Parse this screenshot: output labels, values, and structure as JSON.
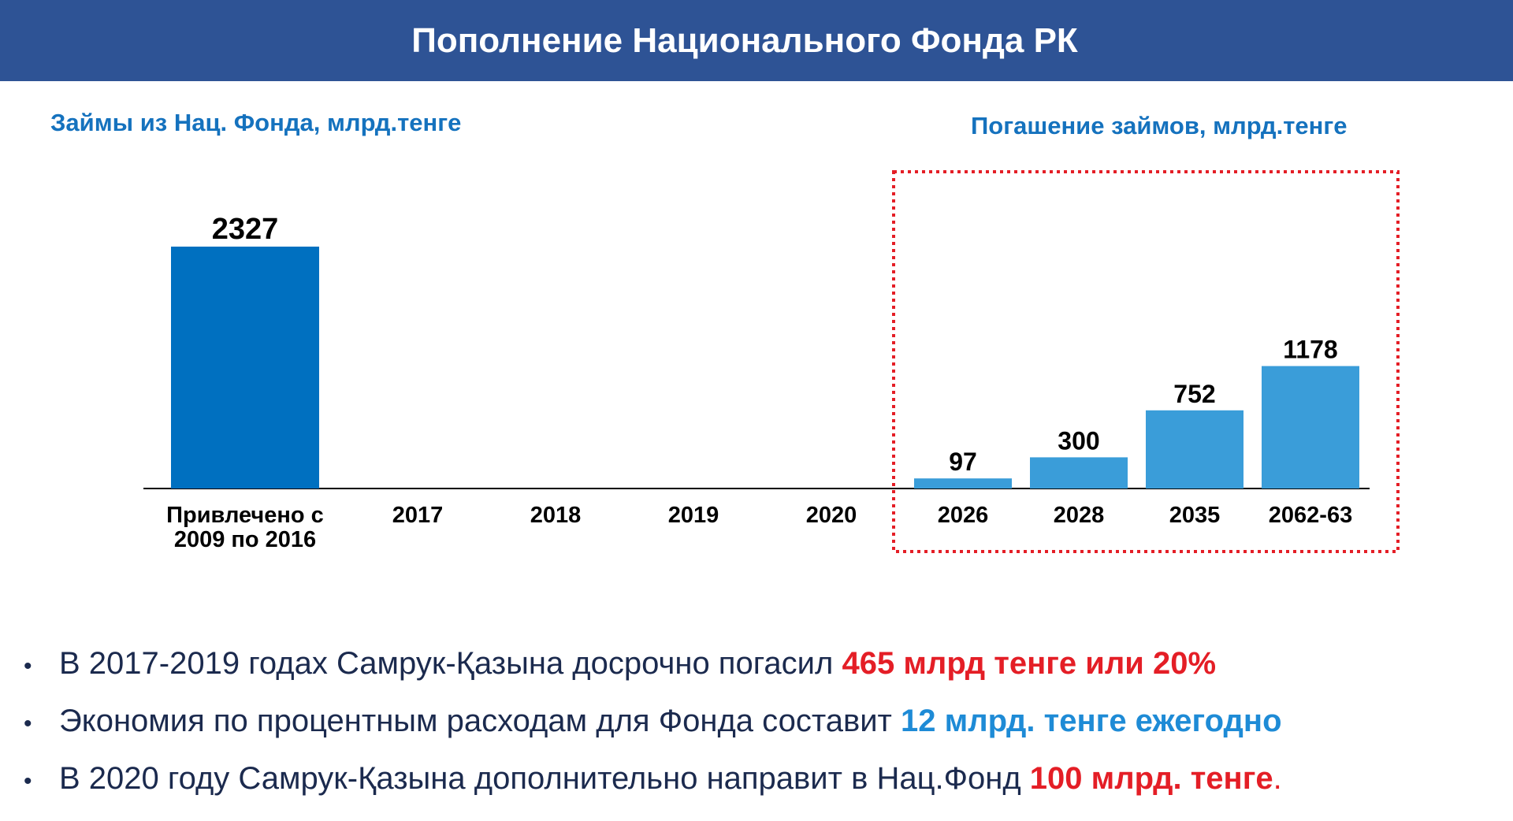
{
  "header": {
    "title": "Пополнение Национального Фонда РК"
  },
  "subtitles": {
    "left": "Займы из Нац. Фонда, млрд.тенге",
    "right": "Погашение займов, млрд.тенге"
  },
  "colors": {
    "header_bg": "#2E5395",
    "subtitle": "#1572BE",
    "bar_borrowed": "#0070C0",
    "bar_repayment": "#3A9DD9",
    "highlight_box": "#E41E26",
    "text_red": "#E41E26",
    "text_blue": "#1E8BD6"
  },
  "chart_data": {
    "type": "bar",
    "categories": [
      "Привлечено с 2009 по 2016",
      "2017",
      "2018",
      "2019",
      "2020",
      "2026",
      "2028",
      "2035",
      "2062-63"
    ],
    "category_lines": [
      [
        "Привлечено с",
        "2009 по 2016"
      ],
      [
        "2017"
      ],
      [
        "2018"
      ],
      [
        "2019"
      ],
      [
        "2020"
      ],
      [
        "2026"
      ],
      [
        "2028"
      ],
      [
        "2035"
      ],
      [
        "2062-63"
      ]
    ],
    "values": [
      2327,
      null,
      null,
      null,
      null,
      97,
      300,
      752,
      1178
    ],
    "value_labels": [
      "2327",
      "",
      "",
      "",
      "",
      "97",
      "300",
      "752",
      "1178"
    ],
    "groups": [
      {
        "label": "Займы из Нац. Фонда, млрд.тенге",
        "indices": [
          0,
          1,
          2,
          3,
          4
        ]
      },
      {
        "label": "Погашение займов, млрд.тенге",
        "indices": [
          5,
          6,
          7,
          8
        ],
        "highlighted": true
      }
    ],
    "title": "Пополнение Национального Фонда РК",
    "xlabel": "",
    "ylabel": "",
    "unit": "млрд.тенге",
    "grid": false,
    "legend": "none"
  },
  "bullets": [
    {
      "text": "В 2017-2019 годах Самрук-Қазына досрочно погасил ",
      "highlight": "465 млрд тенге или 20%",
      "highlight_color": "#E41E26",
      "tail": ""
    },
    {
      "text": "Экономия по процентным расходам для Фонда составит ",
      "highlight": "12 млрд. тенге ежегодно",
      "highlight_color": "#1E8BD6",
      "tail": ""
    },
    {
      "text": "В 2020 году Самрук-Қазына дополнительно направит в Нац.Фонд  ",
      "highlight": "100 млрд. тенге",
      "highlight_color": "#E41E26",
      "tail": "."
    }
  ]
}
